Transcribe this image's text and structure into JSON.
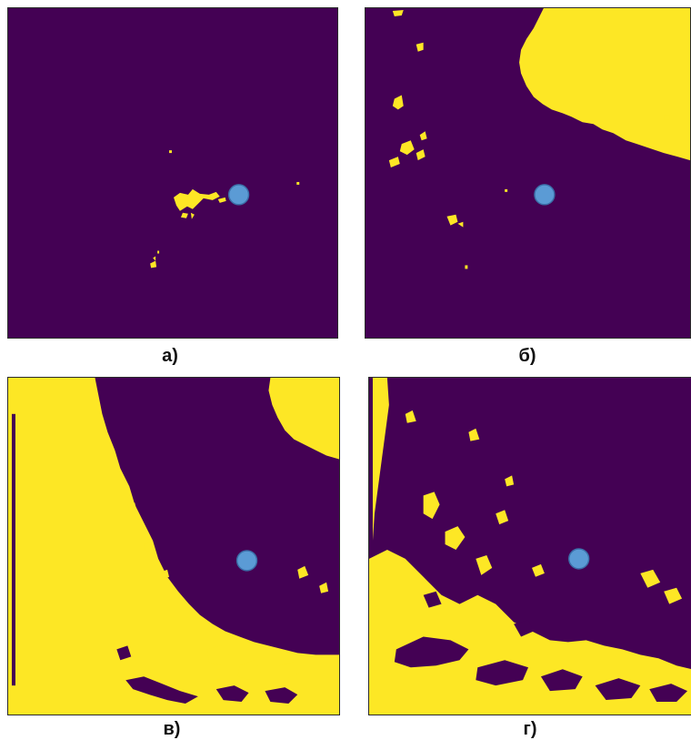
{
  "colors": {
    "background": "#440154",
    "mask": "#fde725",
    "marker_fill": "#5b9bd5",
    "marker_stroke": "#3b6fa8"
  },
  "panels": [
    {
      "id": "a",
      "caption": "а)"
    },
    {
      "id": "b",
      "caption": "б)"
    },
    {
      "id": "c",
      "caption": "в)"
    },
    {
      "id": "d",
      "caption": "г)"
    }
  ]
}
